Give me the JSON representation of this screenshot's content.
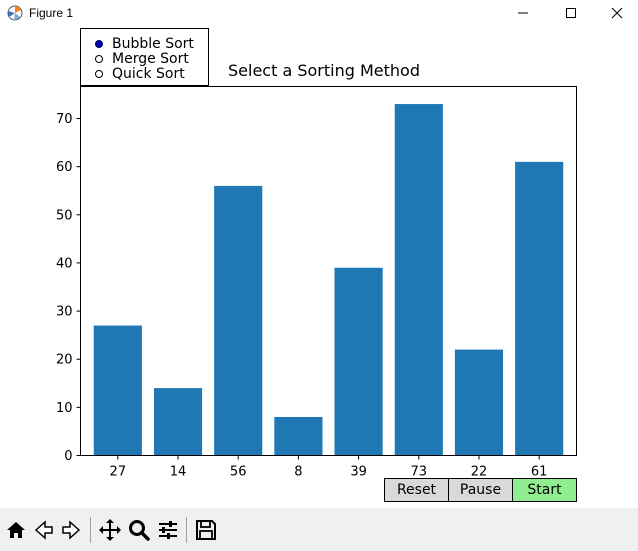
{
  "window": {
    "title": "Figure 1",
    "minimize_symbol": "—",
    "maximize_symbol": "☐",
    "close_symbol": "✕"
  },
  "radio": {
    "options": [
      "Bubble Sort",
      "Merge Sort",
      "Quick Sort"
    ],
    "selected_index": 0
  },
  "buttons": {
    "reset": "Reset",
    "pause": "Pause",
    "start": "Start",
    "start_color": "#90ee90",
    "default_color": "#d9d9d9"
  },
  "toolbar": {
    "icons": [
      "home-icon",
      "back-icon",
      "forward-icon",
      "pan-icon",
      "zoom-icon",
      "configure-subplots-icon",
      "save-icon"
    ]
  },
  "chart_data": {
    "type": "bar",
    "title": "Select a Sorting Method",
    "categories": [
      "27",
      "14",
      "56",
      "8",
      "39",
      "73",
      "22",
      "61"
    ],
    "values": [
      27,
      14,
      56,
      8,
      39,
      73,
      22,
      61
    ],
    "ylim": [
      0,
      76.65
    ],
    "yticks": [
      0,
      10,
      20,
      30,
      40,
      50,
      60,
      70
    ],
    "bar_color": "#1f77b4",
    "grid": false,
    "xlabel": "",
    "ylabel": ""
  }
}
